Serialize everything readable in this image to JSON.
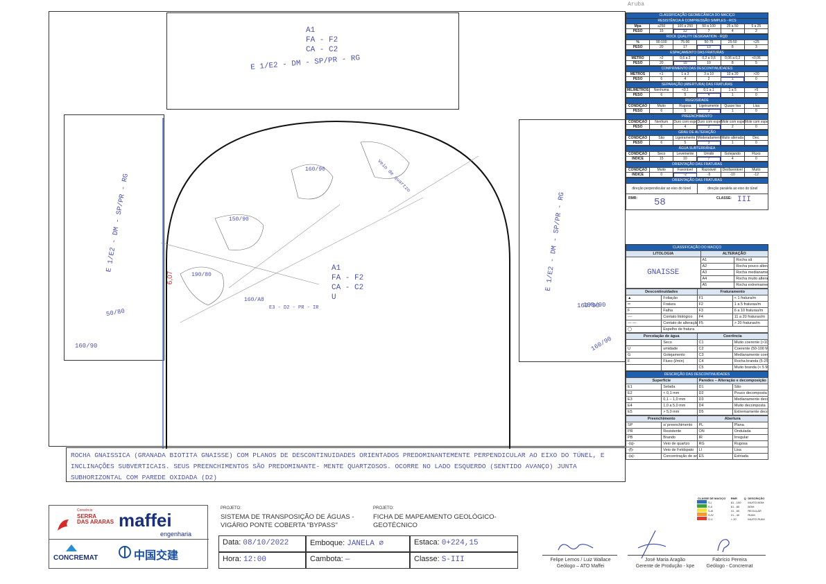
{
  "corner_note": "Aruba",
  "crown_box": {
    "lines": [
      "A1",
      "FA - F2",
      "CA - C2",
      "E 1/E2 - DM - SP/PR - RG"
    ]
  },
  "left_wall_label": "E 1/E2 - DM - SP/PR - RG",
  "right_wall_label": "E 1/E2 - DM - SP/PR - RG",
  "face": {
    "height_mark": "6,07",
    "center_lines": [
      "A1",
      "FA - F2",
      "CA - C2",
      "U"
    ],
    "measurements": [
      "160/90",
      "150/90",
      "190/80",
      "160/A8",
      "E3 - D2 - PR - IR",
      "160/90",
      "50/80",
      "180/90",
      "160/90",
      "160/90"
    ],
    "vein_note": "Veio de quartzo"
  },
  "rmr": {
    "title": "CLASSIFICAÇÃO GEOMECÂNICA DO MACIÇO",
    "sections": [
      {
        "title": "RESISTÊNCIA À COMPRESSÃO SIMPLES - RCS",
        "rows": [
          [
            "Mpa",
            "≥250",
            "100 a 250",
            "50 a 100",
            "25 a 50",
            "5 a 25"
          ],
          [
            "PESO",
            "15",
            "12",
            "7",
            "4",
            "2"
          ]
        ],
        "sel": [
          1,
          2
        ]
      },
      {
        "title": "ROCK QUALITY DESIGNATION - RQD",
        "rows": [
          [
            "%",
            "90-100",
            "75-90",
            "50-75",
            "25-50",
            "<25"
          ],
          [
            "PESO",
            "20",
            "17",
            "13",
            "8",
            "3"
          ]
        ],
        "sel": [
          1,
          3
        ]
      },
      {
        "title": "ESPAÇAMENTO DAS FRATURAS",
        "rows": [
          [
            "METRO",
            ">2",
            "0,6 a 2",
            "0,2 a 0,6",
            "0,06 a 0,2",
            "<0,06"
          ],
          [
            "PESO",
            "20",
            "15",
            "10",
            "8",
            "5"
          ]
        ],
        "sel": [
          1,
          2
        ]
      },
      {
        "title": "COMPRIMENTO DAS DESCONTINUIDADES",
        "rows": [
          [
            "METROS",
            "<1",
            "1 a 3",
            "3 a 10",
            "10 a 20",
            ">20"
          ],
          [
            "PESO",
            "6",
            "4",
            "2",
            "1",
            "0"
          ]
        ],
        "sel": [
          1,
          4
        ]
      },
      {
        "title": "SEPARAÇÃO (ABERTURA) DAS FRATURAS",
        "rows": [
          [
            "MILÍMETROS",
            "Nenhuma",
            "<0,1",
            "0,1 a 1",
            "1 a 5",
            ">5"
          ],
          [
            "PESO",
            "6",
            "5",
            "4",
            "1",
            "0"
          ]
        ],
        "sel": [
          1,
          3
        ]
      },
      {
        "title": "RUGOSIDADE",
        "rows": [
          [
            "CONDIÇÃO",
            "Muito",
            "Rugosa",
            "Ligeiramente",
            "Quase lisa",
            "Lisa"
          ],
          [
            "PESO",
            "6",
            "5",
            "3",
            "1",
            "0"
          ]
        ],
        "sel": [
          1,
          3
        ]
      },
      {
        "title": "PREENCHIMENTO",
        "rows": [
          [
            "CONDIÇÃO",
            "Nenhum",
            "Duro com espessura",
            "Duro com espessura",
            "Mole com espessura",
            "Mole com espessura"
          ],
          [
            "PESO",
            "6",
            "4",
            "2",
            "2",
            "0"
          ]
        ],
        "sel": [
          1,
          3
        ]
      },
      {
        "title": "GRAU DE ALTERAÇÃO",
        "rows": [
          [
            "CONDIÇÃO",
            "São",
            "Ligeiramente",
            "Moderadamente",
            "Muito alterada",
            "Dec."
          ],
          [
            "PESO",
            "6",
            "5",
            "3",
            "1",
            "0"
          ]
        ],
        "sel": [
          1,
          3
        ]
      },
      {
        "title": "ÁGUA SUBTERRÂNEA",
        "rows": [
          [
            "CONDIÇÃO",
            "Seco",
            "Levemente",
            "Úmido",
            "Gotejando",
            "Fluxo"
          ],
          [
            "ÍNDICE",
            "15",
            "10",
            "7",
            "4",
            "0"
          ]
        ],
        "sel": [
          1,
          3
        ]
      },
      {
        "title": "ORIENTAÇÃO DAS FRATURAS",
        "rows": [
          [
            "CONDIÇÃO",
            "Muito",
            "Favorável",
            "Razoável",
            "Desfavorável",
            "Muito"
          ],
          [
            "ÍNDICE",
            "0",
            "-2",
            "-5",
            "-10",
            "-12"
          ]
        ],
        "sel": [
          1,
          2
        ]
      }
    ],
    "orient_title": "ORIENTAÇÃO DAS FRATURAS",
    "orient_left": "direção perpendicular ao eixo do túnel",
    "orient_right": "direção paralela ao eixo do túnel",
    "rmr_label": "RMR:",
    "rmr_value": "58",
    "class_label": "CLASSE:",
    "class_value": "III"
  },
  "legend": {
    "title": "CLASSIFICAÇÃO DO MACIÇO",
    "litologia_h": "LITOLOGIA",
    "alteracao_h": "ALTERAÇÃO",
    "litologia_value": "GNAISSE",
    "alteracao": [
      [
        "A1",
        "Rocha sã"
      ],
      [
        "A2",
        "Rocha pouco alterada"
      ],
      [
        "A3",
        "Rocha medianamente alterada"
      ],
      [
        "A4",
        "Rocha muito alterada"
      ],
      [
        "A5",
        "Rocha extremamente alterada"
      ]
    ],
    "desc_h": "Descontinuidades",
    "frat_h": "Fraturamento",
    "desc": [
      "Foliação",
      "Fratura",
      "Falha",
      "Contato litológico",
      "Contato de alteração",
      "Espelho de fratura"
    ],
    "frat": [
      [
        "F1",
        "< 1 fratura/m"
      ],
      [
        "F2",
        "1 a 5 fraturas/m"
      ],
      [
        "F3",
        "6 a 10 fraturas/m"
      ],
      [
        "F4",
        "11 a 20 fraturas/m"
      ],
      [
        "F5",
        "> 20 fraturas/m"
      ]
    ],
    "perc_h": "Percolação de água",
    "coer_h": "Coerência",
    "perc": [
      [
        "",
        "Seco"
      ],
      [
        "U",
        "umidade"
      ],
      [
        "G",
        "Gotejamento"
      ],
      [
        "F",
        "Fluxo (l/min)"
      ]
    ],
    "coer": [
      [
        "C1",
        "Muito coerente (>100 Mpa)"
      ],
      [
        "C2",
        "Coerente (50-100 Mpa)"
      ],
      [
        "C3",
        "Medianamente coerente (25-50 Mpa)"
      ],
      [
        "C4",
        "Rocha branda (5-25 Mpa)"
      ],
      [
        "C5",
        "Muito branda (< 5 Mpa)"
      ]
    ],
    "desc2_title": "DESCRIÇÃO DAS DESCONTINUIDADES",
    "sup_h": "Superfície",
    "par_h": "Paredes – Alteração e decomposição",
    "sup": [
      [
        "E1",
        "Selada"
      ],
      [
        "E2",
        "< 0,1 mm"
      ],
      [
        "E3",
        "0,1 – 1,0 mm"
      ],
      [
        "E4",
        "1,0 a 5,0 mm"
      ],
      [
        "E5",
        "> 5,0 mm"
      ]
    ],
    "par": [
      [
        "D1",
        "São"
      ],
      [
        "D2",
        "Pouco decomposta"
      ],
      [
        "D3",
        "Medianamente decomposta"
      ],
      [
        "D4",
        "Muito decomposta"
      ],
      [
        "D5",
        "Extremamente decomposta"
      ]
    ],
    "pre_h": "Preenchimento",
    "abe_h": "Abertura",
    "pre": [
      [
        "SP",
        "s/ preenchimento"
      ],
      [
        "PR",
        "Resistente"
      ],
      [
        "PB",
        "Brando"
      ],
      [
        "-(q)-",
        "Veio de quartzo"
      ],
      [
        "-(f)-",
        "Veio de Feldspato"
      ],
      [
        "-(a)-",
        "Concentração de argila"
      ]
    ],
    "abe": [
      [
        "PL",
        "Plana"
      ],
      [
        "ON",
        "Ondulada"
      ],
      [
        "IR",
        "Irregular"
      ],
      [
        "RG",
        "Rugosa"
      ],
      [
        "LI",
        "Lisa"
      ],
      [
        "ES",
        "Estriada"
      ]
    ],
    "classes": [
      {
        "cls": "S-I",
        "range": "81 - 100",
        "color": "#2d6db5",
        "desc": "MUITO BOM"
      },
      {
        "cls": "S-II",
        "range": "61 - 80",
        "color": "#3aa23a",
        "desc": "BOM"
      },
      {
        "cls": "S-III",
        "range": "41 - 60",
        "color": "#f2e33b",
        "desc": "REGULAR"
      },
      {
        "cls": "S-IV",
        "range": "21 - 40",
        "color": "#f39a2b",
        "desc": "RUIM"
      },
      {
        "cls": "S-V",
        "range": "< 20",
        "color": "#e23a2f",
        "desc": "MUITO RUIM"
      }
    ],
    "classes_head": [
      "CLASSE DE MACIÇO",
      "RMR",
      "Q",
      "DESCRIÇÃO"
    ]
  },
  "description_text": "ROCHA GNAISSICA (GRANADA BIOTITA GNAISSE) COM PLANOS DE DESCONTINUIDADES ORIENTADOS PREDOMINANTEMENTE PERPENDICULAR AO EIXO DO TÚNEL, E INCLINAÇÕES SUBVERTICAIS. SEUS PREENCHIMENTOS SÃO PREDOMINANTE- MENTE QUARTZOSOS. OCORRE NO LADO ESQUERDO (SENTIDO AVANÇO) JUNTA SUBHORIZONTAL COM PAREDE OXIDADA (D2)",
  "footer": {
    "consorcio": "Consórcio",
    "serra1": "SERRA",
    "serra2": "DAS ARARAS",
    "maffei": "maffei",
    "engenharia": "engenharia",
    "concremat": "CONCREMAT",
    "crcc": "中国交建",
    "projeto_label": "PROJETO:",
    "projeto_value": "SISTEMA DE TRANSPOSIÇÃO DE ÁGUAS - VIGÁRIO PONTE COBERTA \"BYPASS\"",
    "projeto2_label": "PROJETO:",
    "projeto2_value": "FICHA DE MAPEAMENTO GEOLÓGICO-GEOTÉCNICO",
    "data_label": "Data:",
    "data_value": "08/10/2022",
    "hora_label": "Hora:",
    "hora_value": "12:00",
    "emboque_label": "Emboque:",
    "emboque_value": "JANELA ∅",
    "cambota_label": "Cambota:",
    "cambota_value": "—",
    "estaca_label": "Estaca:",
    "estaca_value": "0+224,15",
    "classe_label": "Classe:",
    "classe_value": "S-III",
    "sig1_name": "Felipe Lemos / Luiz Wallace",
    "sig1_role": "Geólogo – ATO Maffei",
    "sig2_name": "José Maria Aragão",
    "sig2_role": "Gerente de Produção - kpe",
    "sig3_name": "Fabrício Pereira",
    "sig3_role": "Geólogo - Concremat"
  }
}
